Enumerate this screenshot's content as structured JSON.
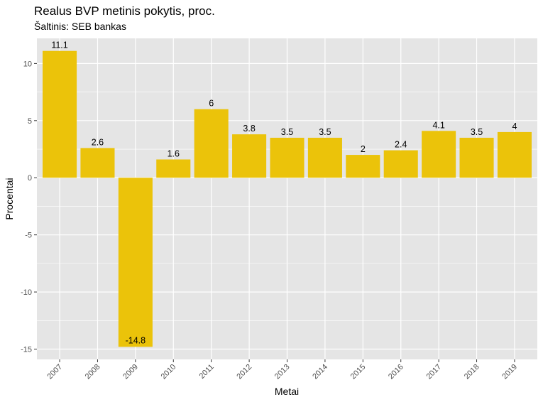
{
  "chart_data": {
    "type": "bar",
    "title": "Realus BVP metinis pokytis, proc.",
    "subtitle": "Šaltinis: SEB bankas",
    "xlabel": "Metai",
    "ylabel": "Procentai",
    "categories": [
      "2007",
      "2008",
      "2009",
      "2010",
      "2011",
      "2012",
      "2013",
      "2014",
      "2015",
      "2016",
      "2017",
      "2018",
      "2019"
    ],
    "values": [
      11.1,
      2.6,
      -14.8,
      1.6,
      6,
      3.8,
      3.5,
      3.5,
      2,
      2.4,
      4.1,
      3.5,
      4
    ],
    "data_labels": [
      "11.1",
      "2.6",
      "-14.8",
      "1.6",
      "6",
      "3.8",
      "3.5",
      "3.5",
      "2",
      "2.4",
      "4.1",
      "3.5",
      "4"
    ],
    "yticks": [
      -15,
      -10,
      -5,
      0,
      5,
      10
    ],
    "ytick_labels": [
      "-15",
      "-10",
      "-5",
      "0",
      "5",
      "10"
    ],
    "ylim": [
      -15.9,
      12.2
    ],
    "grid": true,
    "legend": "none",
    "colors": {
      "bar": "#EBC30A",
      "panel": "#E5E5E5",
      "grid": "#FFFFFF"
    }
  }
}
